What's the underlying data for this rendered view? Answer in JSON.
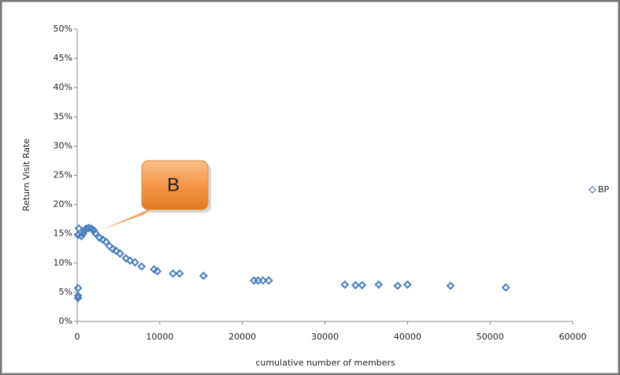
{
  "chart_data": {
    "type": "scatter",
    "ylabel": "Return Visit Rate",
    "xlabel": "cumulative  number  of  members",
    "annotation": "B",
    "xlim": [
      0,
      60000
    ],
    "xticks": [
      0,
      10000,
      20000,
      30000,
      40000,
      50000,
      60000
    ],
    "ylim": [
      0,
      50
    ],
    "yticks": [
      {
        "value": 0,
        "label": "0%"
      },
      {
        "value": 5,
        "label": "5%"
      },
      {
        "value": 10,
        "label": "10%"
      },
      {
        "value": 15,
        "label": "15%"
      },
      {
        "value": 20,
        "label": "20%"
      },
      {
        "value": 25,
        "label": "25%"
      },
      {
        "value": 30,
        "label": "30%"
      },
      {
        "value": 35,
        "label": "35%"
      },
      {
        "value": 40,
        "label": "40%"
      },
      {
        "value": 45,
        "label": "45%"
      },
      {
        "value": 50,
        "label": "50%"
      }
    ],
    "grid": false,
    "legend": "right",
    "series": [
      {
        "name": "BP",
        "color": "#4a7ebb",
        "x": [
          200,
          100,
          100,
          100,
          100,
          500,
          700,
          900,
          1100,
          1400,
          1700,
          2000,
          2200,
          2700,
          3100,
          3500,
          3900,
          4300,
          4700,
          5200,
          5900,
          6400,
          7000,
          7800,
          9300,
          9700,
          11600,
          12400,
          15300,
          21400,
          21900,
          22500,
          23200,
          32400,
          33700,
          34500,
          36500,
          38800,
          40000,
          45200,
          51900
        ],
        "values": [
          15.9,
          14.8,
          5.7,
          4.4,
          4.0,
          14.6,
          15.0,
          15.5,
          15.9,
          16.0,
          15.9,
          15.6,
          15.1,
          14.3,
          14.0,
          13.6,
          12.9,
          12.4,
          12.1,
          11.6,
          10.8,
          10.4,
          10.1,
          9.4,
          8.9,
          8.6,
          8.2,
          8.2,
          7.8,
          7.0,
          7.0,
          7.0,
          7.0,
          6.3,
          6.2,
          6.2,
          6.3,
          6.1,
          6.3,
          6.1,
          5.8
        ]
      }
    ]
  }
}
